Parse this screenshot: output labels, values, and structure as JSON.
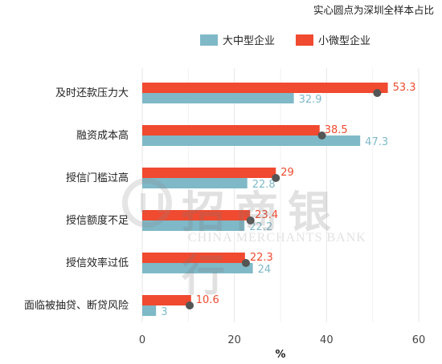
{
  "annotation_note": "实心圆点为深圳全样本占比",
  "colors": {
    "large": "#7fb9c8",
    "small": "#f04a30",
    "dot": "#555555"
  },
  "watermark": {
    "text_cn": "招商银行",
    "text_en": "CHINA MERCHANTS BANK"
  },
  "chart_data": {
    "type": "bar",
    "orientation": "horizontal",
    "categories": [
      "及时还款压力大",
      "融资成本高",
      "授信门槛过高",
      "授信额度不足",
      "授信效率过低",
      "面临被抽贷、断贷风险"
    ],
    "series": [
      {
        "name": "大中型企业",
        "values": [
          32.9,
          47.3,
          22.8,
          22.2,
          24,
          3
        ]
      },
      {
        "name": "小微型企业",
        "values": [
          53.3,
          38.5,
          29,
          23.4,
          22.3,
          10.6
        ]
      }
    ],
    "dots": [
      51,
      39,
      29,
      23.5,
      22.5,
      10.3
    ],
    "xlabel": "%",
    "xlim": [
      0,
      60
    ],
    "xticks": [
      0,
      20,
      40,
      60
    ],
    "grid": true,
    "legend": "top"
  }
}
